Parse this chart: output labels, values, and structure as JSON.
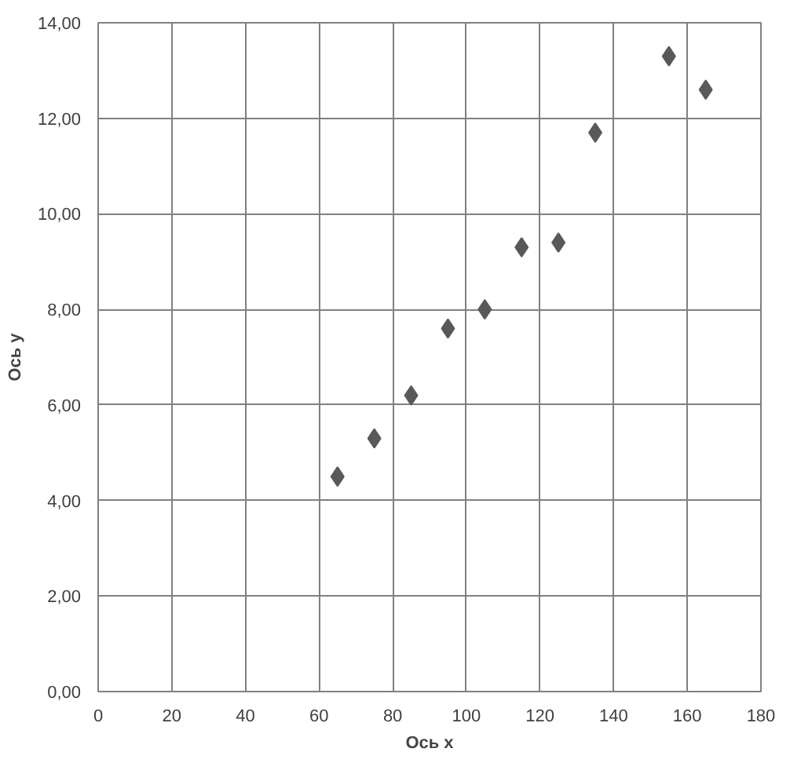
{
  "chart_data": {
    "type": "scatter",
    "xlabel": "Ось x",
    "ylabel": "Ось y",
    "x": [
      65,
      75,
      85,
      95,
      105,
      115,
      125,
      135,
      155,
      165
    ],
    "series": [
      {
        "color": "#595959",
        "values": [
          4.5,
          5.3,
          6.2,
          7.6,
          8.0,
          9.3,
          9.4,
          11.7,
          13.3,
          12.6
        ]
      }
    ],
    "xlim": [
      0,
      180
    ],
    "xticks": [
      0,
      20,
      40,
      60,
      80,
      100,
      120,
      140,
      160,
      180
    ],
    "ylim": [
      0,
      14
    ],
    "yticks": [
      {
        "value": 0,
        "label": "0,00"
      },
      {
        "value": 2,
        "label": "2,00"
      },
      {
        "value": 4,
        "label": "4,00"
      },
      {
        "value": 6,
        "label": "6,00"
      },
      {
        "value": 8,
        "label": "8,00"
      },
      {
        "value": 10,
        "label": "10,00"
      },
      {
        "value": 12,
        "label": "12,00"
      },
      {
        "value": 14,
        "label": "14,00"
      }
    ],
    "grid": true,
    "marker": "diamond"
  }
}
